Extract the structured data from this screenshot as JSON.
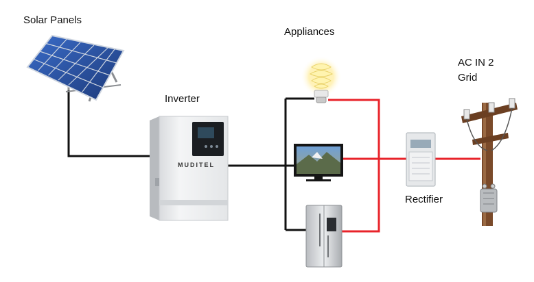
{
  "labels": {
    "solar_panels": "Solar Panels",
    "appliances": "Appliances",
    "inverter": "Inverter",
    "ac_in": "AC IN 2",
    "grid": "Grid",
    "rectifier": "Rectifier"
  },
  "inverter_brand": "MUDITEL",
  "colors": {
    "dc_wire": "#111111",
    "ac_wire": "#e8232a",
    "panel_blue": "#2a4f9c",
    "pole_brown": "#7a4a2a"
  }
}
